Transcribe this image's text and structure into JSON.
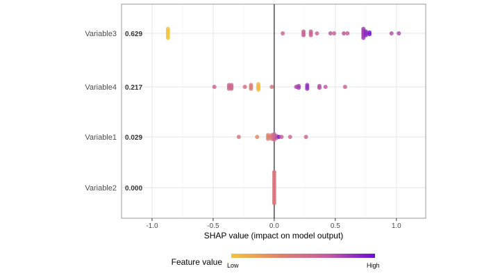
{
  "chart_data": {
    "type": "scatter",
    "subtype": "shap-beeswarm",
    "xlabel": "SHAP value (impact on model output)",
    "xlim": [
      -1.25,
      1.24
    ],
    "xticks": [
      -1.0,
      -0.5,
      0.0,
      0.5,
      1.0
    ],
    "xtick_labels": [
      "-1.0",
      "-0.5",
      "0.0",
      "0.5",
      "1.0"
    ],
    "grid": true,
    "legend": {
      "title": "Feature value",
      "low_label": "Low",
      "high_label": "High",
      "placement": "bottom",
      "gradient": [
        "#F5C342",
        "#E0836A",
        "#C55EA0",
        "#6A0FD3"
      ]
    },
    "features": [
      {
        "name": "Variable3",
        "mean_abs": "0.629",
        "points": [
          {
            "x": -0.87,
            "v": 0.0,
            "n": 6
          },
          {
            "x": 0.07,
            "v": 0.55
          },
          {
            "x": 0.24,
            "v": 0.62,
            "n": 3
          },
          {
            "x": 0.3,
            "v": 0.6,
            "n": 3
          },
          {
            "x": 0.35,
            "v": 0.58
          },
          {
            "x": 0.46,
            "v": 0.68
          },
          {
            "x": 0.49,
            "v": 0.6
          },
          {
            "x": 0.57,
            "v": 0.7
          },
          {
            "x": 0.6,
            "v": 0.65
          },
          {
            "x": 0.73,
            "v": 0.8,
            "n": 6
          },
          {
            "x": 0.75,
            "v": 0.88,
            "n": 3
          },
          {
            "x": 0.78,
            "v": 0.95,
            "n": 2
          },
          {
            "x": 0.96,
            "v": 0.72
          },
          {
            "x": 1.02,
            "v": 0.75
          }
        ]
      },
      {
        "name": "Variable4",
        "mean_abs": "0.217",
        "points": [
          {
            "x": -0.49,
            "v": 0.6
          },
          {
            "x": -0.37,
            "v": 0.55,
            "n": 3
          },
          {
            "x": -0.35,
            "v": 0.58,
            "n": 3
          },
          {
            "x": -0.24,
            "v": 0.5
          },
          {
            "x": -0.19,
            "v": 0.38,
            "n": 3
          },
          {
            "x": -0.13,
            "v": 0.05,
            "n": 4
          },
          {
            "x": -0.02,
            "v": 0.45
          },
          {
            "x": 0.18,
            "v": 0.75
          },
          {
            "x": 0.2,
            "v": 0.8,
            "n": 2
          },
          {
            "x": 0.27,
            "v": 0.85,
            "n": 3
          },
          {
            "x": 0.37,
            "v": 0.72,
            "n": 2
          },
          {
            "x": 0.42,
            "v": 0.68
          },
          {
            "x": 0.58,
            "v": 0.6
          }
        ]
      },
      {
        "name": "Variable1",
        "mean_abs": "0.029",
        "points": [
          {
            "x": -0.29,
            "v": 0.45
          },
          {
            "x": -0.14,
            "v": 0.3
          },
          {
            "x": -0.05,
            "v": 0.35,
            "n": 3
          },
          {
            "x": -0.02,
            "v": 0.45,
            "n": 3
          },
          {
            "x": 0.0,
            "v": 0.55,
            "n": 4
          },
          {
            "x": 0.02,
            "v": 0.7,
            "n": 2
          },
          {
            "x": 0.04,
            "v": 0.95
          },
          {
            "x": 0.06,
            "v": 0.6
          },
          {
            "x": 0.13,
            "v": 0.55
          },
          {
            "x": 0.26,
            "v": 0.58
          }
        ]
      },
      {
        "name": "Variable2",
        "mean_abs": "0.000",
        "points": [
          {
            "x": 0.0,
            "v": 0.45,
            "n": 15
          }
        ]
      }
    ]
  }
}
